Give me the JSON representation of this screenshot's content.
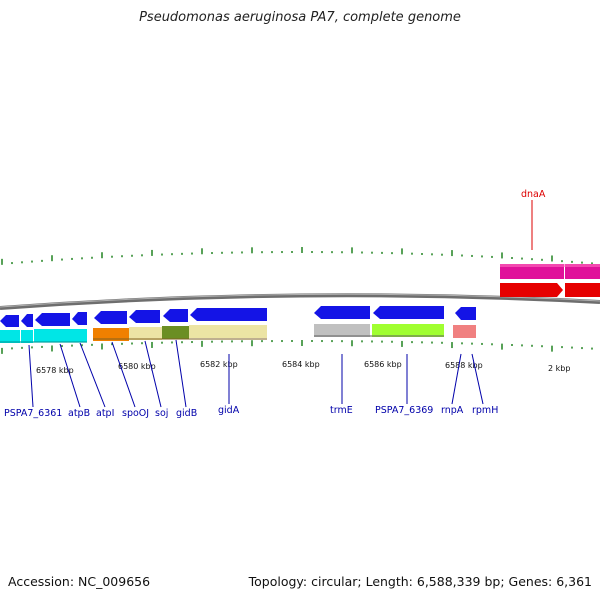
{
  "title": "Pseudomonas aeruginosa PA7, complete genome",
  "footer": {
    "accession": "Accession: NC_009656",
    "info": "Topology: circular; Length: 6,588,339 bp; Genes: 6,361"
  },
  "colors": {
    "blue_gene": "#1414e6",
    "label_blue": "#0000aa",
    "label_red": "#dd0000",
    "tick_green": "#2e8b2e",
    "backbone": "#7a7a7a"
  },
  "kbp_labels": [
    "6578 kbp",
    "6580 kbp",
    "6582 kbp",
    "6584 kbp",
    "6586 kbp",
    "6588 kbp",
    "2 kbp"
  ],
  "gene_labels_below": [
    "PSPA7_6361",
    "atpB",
    "atpI",
    "spoOJ",
    "soj",
    "gidB",
    "gidA",
    "trmE",
    "PSPA7_6369",
    "rnpA",
    "rpmH"
  ],
  "gene_label_above": "dnaA"
}
